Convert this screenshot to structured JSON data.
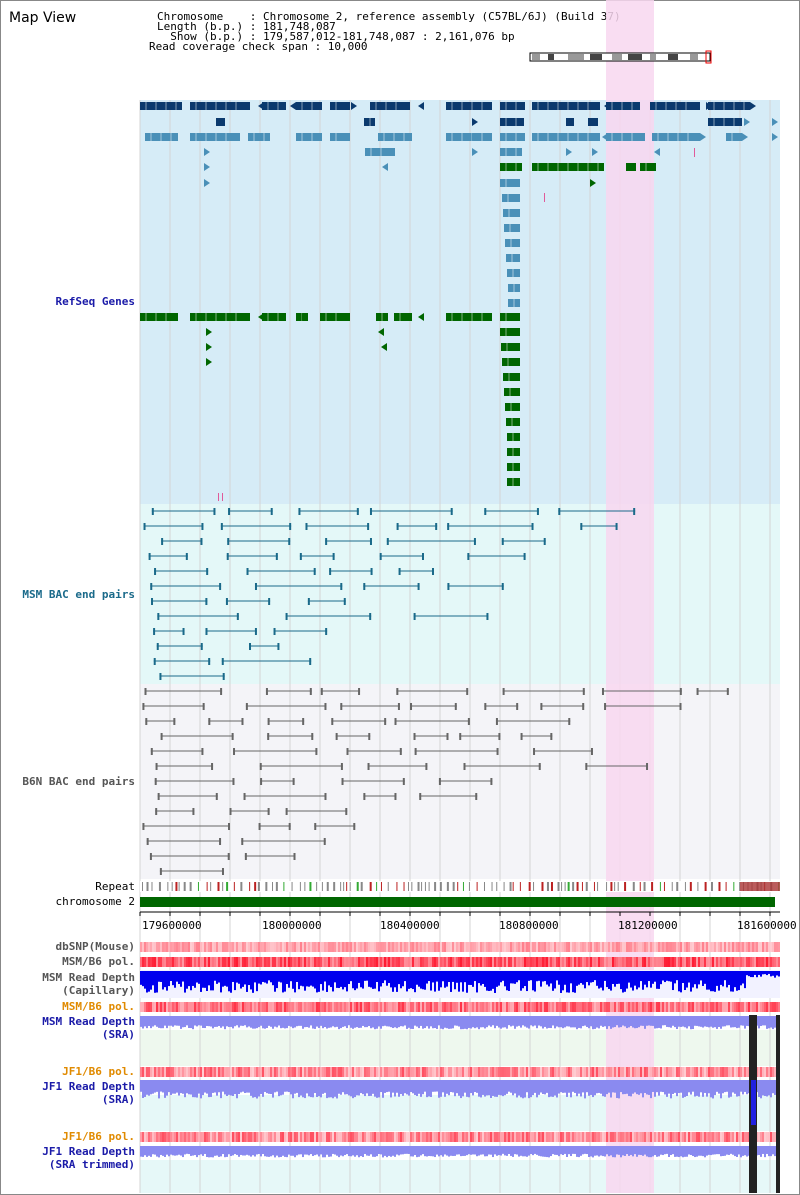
{
  "title": "Map View",
  "info": {
    "chromosome": "Chromosome    : Chromosome 2, reference assembly (C57BL/6J) (Build 37)",
    "length": "Length (b.p.) : 181,748,087",
    "show": "  Show (b.p.) : 179,587,012-181,748,087 : 2,161,076 bp",
    "coverage": "Read coverage check span : 10,000"
  },
  "tracks": {
    "refseq": "RefSeq Genes",
    "msm_bac": "MSM BAC end pairs",
    "b6n_bac": "B6N BAC end pairs",
    "repeat": "Repeat",
    "chromosome": "chromosome 2",
    "dbsnp": "dbSNP(Mouse)",
    "msm_pol_cap": "MSM/B6 pol.",
    "msm_depth_cap_1": "MSM Read Depth",
    "msm_depth_cap_2": "(Capillary)",
    "msm_pol_sra": "MSM/B6 pol.",
    "msm_depth_sra_1": "MSM Read Depth",
    "msm_depth_sra_2": "(SRA)",
    "jf1_pol_1": "JF1/B6 pol.",
    "jf1_depth_1": "JF1 Read Depth",
    "jf1_depth_2": "(SRA)",
    "jf1_pol_2": "JF1/B6 pol.",
    "jf1_trim_1": "JF1 Read Depth",
    "jf1_trim_2": "(SRA trimmed)"
  },
  "axis": [
    "179600000",
    "180000000",
    "180400000",
    "180800000",
    "181200000",
    "181600000"
  ],
  "colors": {
    "gene_dark": "#0b3a6e",
    "gene_mid": "#4a90b8",
    "gene_green": "#006600",
    "bac_msm": "#1a6a8a",
    "bac_b6n": "#666666",
    "highlight": "#f8d7f0",
    "refseq_bg": "#d6ecf7",
    "msm_bg": "#e4f8f8",
    "b6n_bg": "#f4f4f8",
    "depth_blue": "#0000ee",
    "depth_sra": "#8a8af0",
    "pol_red": "#e02020"
  }
}
